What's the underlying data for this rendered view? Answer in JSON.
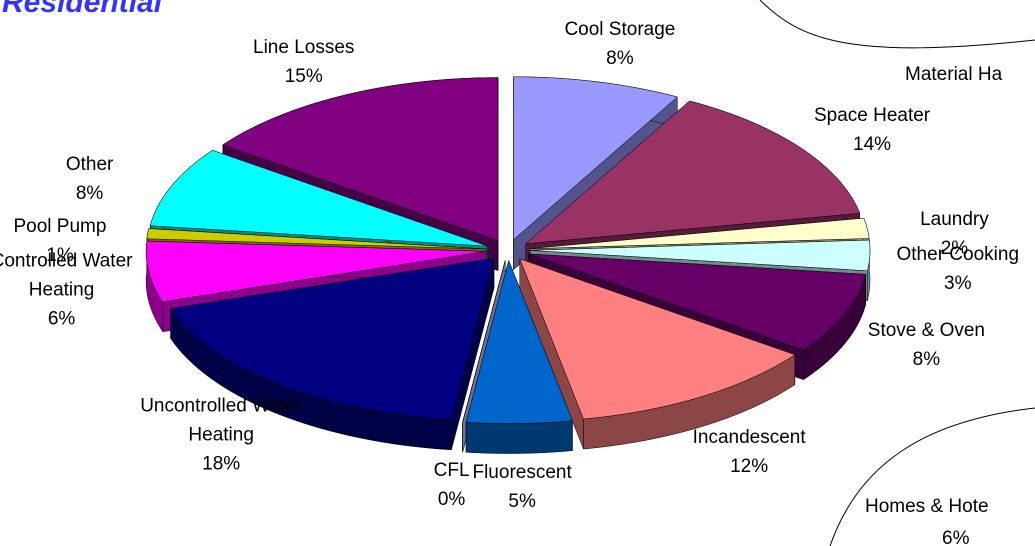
{
  "chart_data": {
    "type": "pie",
    "title": "Residential",
    "categories": [
      "Cool Storage",
      "Space Heater",
      "Laundry",
      "Other Cooking",
      "Stove & Oven",
      "Incandescent",
      "Fluorescent",
      "CFL",
      "Uncontrolled Water Heating",
      "Controlled Water Heating",
      "Pool Pump",
      "Other",
      "Line Losses"
    ],
    "values": [
      8,
      14,
      2,
      3,
      8,
      12,
      5,
      0,
      18,
      6,
      1,
      8,
      15
    ],
    "value_labels": [
      "8%",
      "14%",
      "2%",
      "3%",
      "8%",
      "12%",
      "5%",
      "0%",
      "18%",
      "6%",
      "1%",
      "8%",
      "15%"
    ],
    "colors": [
      "#9999ff",
      "#993366",
      "#ffffcc",
      "#ccffff",
      "#660066",
      "#ff8080",
      "#0066cc",
      "#ccccff",
      "#000080",
      "#ff00ff",
      "#cccc00",
      "#00ffff",
      "#800080"
    ],
    "annotations": [
      "Material Ha",
      "Homes & Hote",
      "6%"
    ]
  }
}
